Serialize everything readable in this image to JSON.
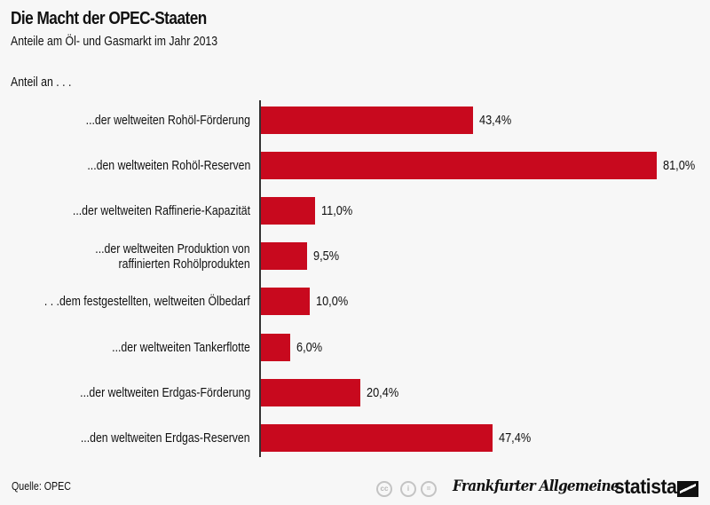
{
  "header": {
    "title": "Die Macht der OPEC-Staaten",
    "subtitle": "Anteile am Öl- und Gasmarkt im Jahr 2013",
    "group_label": "Anteil an . . ."
  },
  "colors": {
    "bar": "#c8091e",
    "background": "#f7f7f7",
    "axis": "#333333"
  },
  "chart_data": {
    "type": "bar",
    "orientation": "horizontal",
    "title": "Die Macht der OPEC-Staaten",
    "subtitle": "Anteile am Öl- und Gasmarkt im Jahr 2013",
    "xlabel": "",
    "ylabel": "Anteil an . . .",
    "xlim": [
      0,
      100
    ],
    "grid": false,
    "legend": null,
    "unit": "%",
    "categories": [
      "...der weltweiten Rohöl-Förderung",
      "...den weltweiten Rohöl-Reserven",
      "...der weltweiten Raffinerie-Kapazität",
      "...der weltweiten Produktion von raffinierten Rohölprodukten",
      ". . .dem festgestellten, weltweiten Ölbedarf",
      "...der weltweiten Tankerflotte",
      "...der weltweiten Erdgas-Förderung",
      "...den weltweiten Erdgas-Reserven"
    ],
    "values": [
      43.4,
      81.0,
      11.0,
      9.5,
      10.0,
      6.0,
      20.4,
      47.4
    ],
    "value_labels": [
      "43,4%",
      "81,0%",
      "11,0%",
      "9,5%",
      "10,0%",
      "6,0%",
      "20,4%",
      "47,4%"
    ]
  },
  "rows": [
    {
      "lines": [
        "...der weltweiten Rohöl-Förderung"
      ],
      "value": 43.4,
      "label": "43,4%"
    },
    {
      "lines": [
        "...den weltweiten Rohöl-Reserven"
      ],
      "value": 81.0,
      "label": "81,0%"
    },
    {
      "lines": [
        "...der weltweiten Raffinerie-Kapazität"
      ],
      "value": 11.0,
      "label": "11,0%"
    },
    {
      "lines": [
        "...der weltweiten Produktion von",
        "raffinierten Rohölprodukten"
      ],
      "value": 9.5,
      "label": "9,5%"
    },
    {
      "lines": [
        ". . .dem festgestellten, weltweiten Ölbedarf"
      ],
      "value": 10.0,
      "label": "10,0%"
    },
    {
      "lines": [
        "...der weltweiten Tankerflotte"
      ],
      "value": 6.0,
      "label": "6,0%"
    },
    {
      "lines": [
        "...der weltweiten Erdgas-Förderung"
      ],
      "value": 20.4,
      "label": "20,4%"
    },
    {
      "lines": [
        "...den weltweiten Erdgas-Reserven"
      ],
      "value": 47.4,
      "label": "47,4%"
    }
  ],
  "footer": {
    "source": "Quelle: OPEC",
    "license_icons": [
      "cc-icon",
      "by-attribution-icon",
      "nd-no-derivatives-icon"
    ],
    "license_glyphs": [
      "cc",
      "i",
      "="
    ],
    "partner_logo": "Frankfurter Allgemeine",
    "brand_logo": "statista"
  }
}
